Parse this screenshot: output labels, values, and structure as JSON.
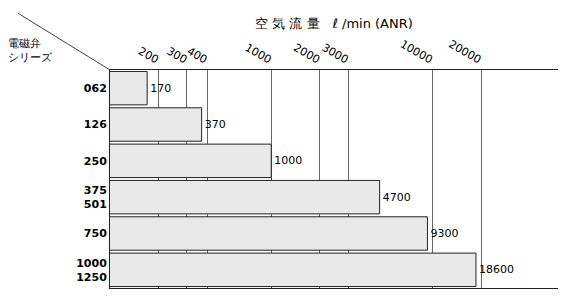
{
  "chart_data": {
    "type": "bar",
    "orientation": "horizontal",
    "xlabel": "空 気 流 量　ℓ /min (ANR)",
    "ylabel": "電磁弁\nシリーズ",
    "categories": [
      "062",
      "126",
      "250",
      "375\n501",
      "750",
      "1000\n1250"
    ],
    "values": [
      170,
      370,
      1000,
      4700,
      9300,
      18600
    ],
    "color": "#e9e9e9",
    "log": "x",
    "xlim": [
      100,
      60000
    ],
    "xticks": [
      200,
      300,
      400,
      1000,
      2000,
      3000,
      10000,
      20000
    ],
    "grid": true,
    "data_labels": true
  }
}
